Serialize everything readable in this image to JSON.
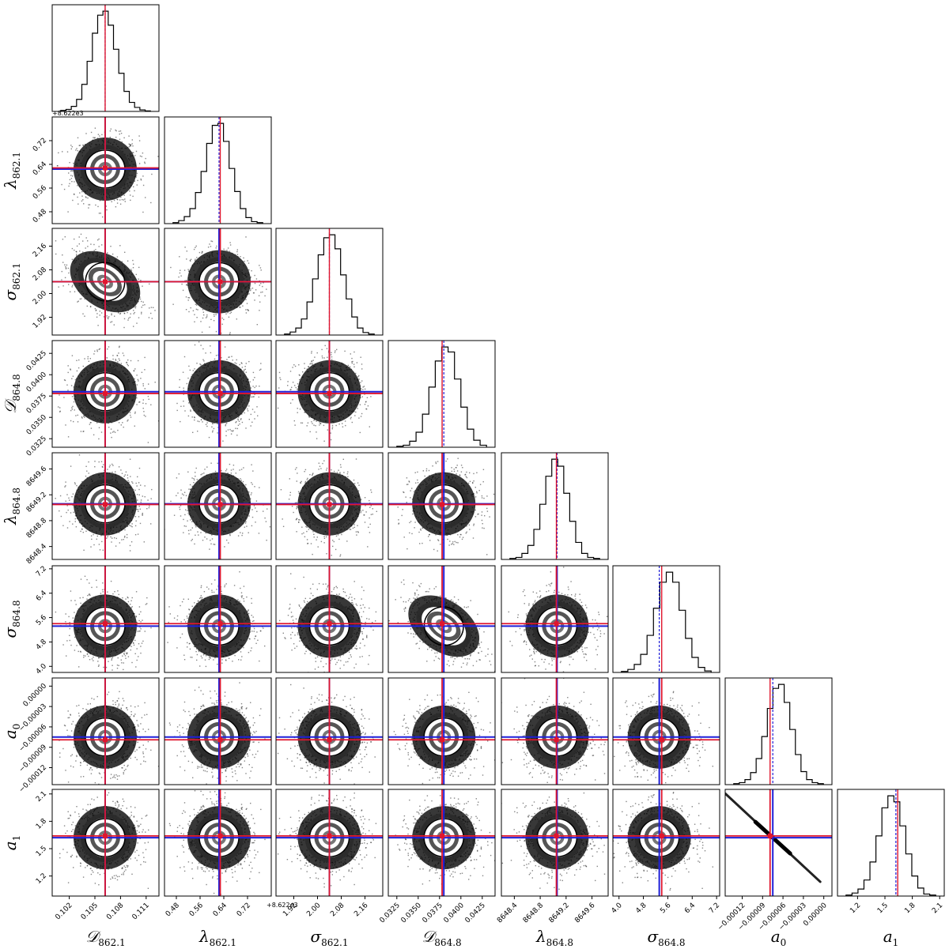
{
  "chart_data": {
    "type": "corner",
    "parameters": [
      {
        "symbol": "𝒟",
        "sub": "862.1",
        "median": 0.1062,
        "true": 0.1062,
        "range": [
          0.1,
          0.1125
        ],
        "ticks": [
          "0.102",
          "0.105",
          "0.108",
          "0.111"
        ],
        "tick_values": [
          0.102,
          0.105,
          0.108,
          0.111
        ],
        "offset": ""
      },
      {
        "symbol": "λ",
        "sub": "862.1",
        "median": 0.624,
        "true": 0.628,
        "range": [
          0.44,
          0.8
        ],
        "ticks": [
          "0.48",
          "0.56",
          "0.64",
          "0.72"
        ],
        "tick_values": [
          0.48,
          0.56,
          0.64,
          0.72
        ],
        "offset": "+8.622e3"
      },
      {
        "symbol": "σ",
        "sub": "862.1",
        "median": 2.04,
        "true": 2.04,
        "range": [
          1.86,
          2.22
        ],
        "ticks": [
          "1.92",
          "2.00",
          "2.08",
          "2.16"
        ],
        "tick_values": [
          1.92,
          2.0,
          2.08,
          2.16
        ],
        "offset": ""
      },
      {
        "symbol": "𝒟",
        "sub": "864.8",
        "median": 0.038,
        "true": 0.0378,
        "range": [
          0.0315,
          0.044
        ],
        "ticks": [
          "0.0325",
          "0.0350",
          "0.0375",
          "0.0400",
          "0.0425"
        ],
        "tick_values": [
          0.0325,
          0.035,
          0.0375,
          0.04,
          0.0425
        ],
        "offset": ""
      },
      {
        "symbol": "λ",
        "sub": "864.8",
        "median": 8649.06,
        "true": 8649.05,
        "range": [
          8648.2,
          8649.85
        ],
        "ticks": [
          "8648.4",
          "8648.8",
          "8649.2",
          "8649.6"
        ],
        "tick_values": [
          8648.4,
          8648.8,
          8649.2,
          8649.6
        ],
        "offset": ""
      },
      {
        "symbol": "σ",
        "sub": "864.8",
        "median": 5.32,
        "true": 5.4,
        "range": [
          3.8,
          7.3
        ],
        "ticks": [
          "4.0",
          "4.8",
          "5.6",
          "6.4",
          "7.2"
        ],
        "tick_values": [
          4.0,
          4.8,
          5.6,
          6.4,
          7.2
        ],
        "offset": ""
      },
      {
        "symbol": "a",
        "sub": "0",
        "median": -7.5e-05,
        "true": -7.9e-05,
        "range": [
          -0.000145,
          1.2e-05
        ],
        "ticks": [
          "−0.00012",
          "−0.00009",
          "−0.00006",
          "−0.00003",
          "0.00000"
        ],
        "tick_values": [
          -0.00012,
          -9e-05,
          -6e-05,
          -3e-05,
          0.0
        ],
        "offset": ""
      },
      {
        "symbol": "a",
        "sub": "1",
        "median": 1.62,
        "true": 1.64,
        "range": [
          0.98,
          2.15
        ],
        "ticks": [
          "1.2",
          "1.5",
          "1.8",
          "2.1"
        ],
        "tick_values": [
          1.2,
          1.5,
          1.8,
          2.1
        ],
        "offset": ""
      }
    ],
    "histograms": [
      [
        0.01,
        0.02,
        0.05,
        0.12,
        0.27,
        0.5,
        0.78,
        0.96,
        1.0,
        0.86,
        0.62,
        0.38,
        0.2,
        0.09,
        0.04,
        0.015,
        0.005
      ],
      [
        0.01,
        0.03,
        0.07,
        0.15,
        0.31,
        0.52,
        0.8,
        0.98,
        1.0,
        0.82,
        0.55,
        0.32,
        0.15,
        0.06,
        0.02,
        0.01
      ],
      [
        0.01,
        0.03,
        0.07,
        0.16,
        0.33,
        0.56,
        0.8,
        0.97,
        1.0,
        0.86,
        0.6,
        0.36,
        0.18,
        0.07,
        0.025,
        0.01
      ],
      [
        0.01,
        0.02,
        0.06,
        0.15,
        0.33,
        0.6,
        0.86,
        1.0,
        0.95,
        0.68,
        0.4,
        0.18,
        0.07,
        0.02
      ],
      [
        0.01,
        0.02,
        0.06,
        0.14,
        0.3,
        0.55,
        0.83,
        1.0,
        0.93,
        0.66,
        0.38,
        0.17,
        0.06,
        0.02,
        0.01
      ],
      [
        0.01,
        0.03,
        0.08,
        0.18,
        0.37,
        0.64,
        0.9,
        1.0,
        0.9,
        0.62,
        0.34,
        0.15,
        0.05,
        0.015
      ],
      [
        0.01,
        0.02,
        0.05,
        0.12,
        0.26,
        0.48,
        0.76,
        0.96,
        1.0,
        0.82,
        0.55,
        0.3,
        0.13,
        0.05,
        0.02,
        0.01
      ],
      [
        0.01,
        0.03,
        0.07,
        0.16,
        0.34,
        0.6,
        0.88,
        1.0,
        0.94,
        0.7,
        0.42,
        0.2,
        0.08,
        0.02,
        0.01
      ]
    ],
    "correlations": {
      "2-0": -0.45,
      "5-3": -0.5,
      "7-6": -0.99
    },
    "marker_colors": {
      "median": "#1f1fd8",
      "true": "#e0162e"
    },
    "grid": false,
    "legend": "none"
  }
}
